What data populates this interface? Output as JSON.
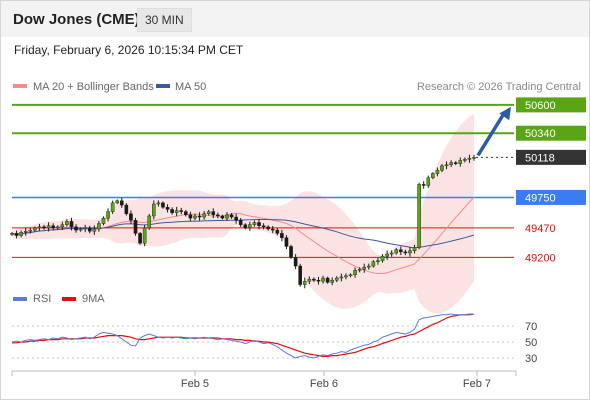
{
  "header": {
    "instrument": "Dow Jones (CME)",
    "timeframe": "30 MIN",
    "timestamp": "Friday, February 6, 2026 10:15:34 PM CET"
  },
  "legend": {
    "ma20_label": "MA 20 + Bollinger Bands",
    "ma50_label": "MA 50",
    "credit": "Research © 2026 Trading Central",
    "ma20_color": "#f28b8b",
    "ma50_color": "#3a5a9a"
  },
  "rsi_legend": {
    "rsi_label": "RSI",
    "ma9_label": "9MA",
    "rsi_color": "#5b7bd5",
    "ma9_color": "#e01010"
  },
  "chart_data": [
    {
      "type": "candlestick",
      "title": "Dow Jones (CME) 30 MIN",
      "x_ticks": [
        "Feb 5",
        "Feb 6",
        "Feb 7"
      ],
      "ylim": [
        48900,
        50700
      ],
      "price_levels": [
        {
          "value": 50600,
          "label": "50600",
          "kind": "resistance",
          "color": "#5aa514"
        },
        {
          "value": 50340,
          "label": "50340",
          "kind": "resistance",
          "color": "#5aa514"
        },
        {
          "value": 50118,
          "label": "50118",
          "kind": "last",
          "color": "#333333"
        },
        {
          "value": 49750,
          "label": "49750",
          "kind": "pivot",
          "color": "#3c7cf2"
        },
        {
          "value": 49470,
          "label": "49470",
          "kind": "support",
          "color": "#e01010"
        },
        {
          "value": 49200,
          "label": "49200",
          "kind": "support",
          "color": "#e01010"
        }
      ],
      "close_series": [
        49420,
        49400,
        49430,
        49440,
        49450,
        49470,
        49480,
        49470,
        49490,
        49470,
        49480,
        49500,
        49530,
        49480,
        49450,
        49460,
        49470,
        49440,
        49460,
        49510,
        49560,
        49620,
        49700,
        49720,
        49680,
        49600,
        49540,
        49420,
        49330,
        49470,
        49580,
        49690,
        49700,
        49660,
        49640,
        49610,
        49630,
        49620,
        49590,
        49560,
        49580,
        49570,
        49600,
        49620,
        49590,
        49580,
        49560,
        49590,
        49570,
        49540,
        49500,
        49470,
        49500,
        49520,
        49490,
        49480,
        49460,
        49450,
        49420,
        49380,
        49300,
        49200,
        49120,
        48950,
        48980,
        49000,
        48990,
        48980,
        49010,
        48970,
        48990,
        49010,
        49020,
        49030,
        49040,
        49080,
        49090,
        49110,
        49120,
        49160,
        49170,
        49210,
        49230,
        49240,
        49270,
        49250,
        49240,
        49260,
        49290,
        49870,
        49860,
        49930,
        49970,
        50000,
        50040,
        50050,
        50070,
        50060,
        50090,
        50100,
        50110,
        50118
      ],
      "annotation": {
        "type": "arrow",
        "from_value": 50118,
        "to_value": 50600,
        "color": "#2a5aa8"
      }
    },
    {
      "type": "line",
      "title": "RSI",
      "ylim": [
        20,
        90
      ],
      "yticks": [
        70,
        50,
        30
      ],
      "series": [
        {
          "name": "RSI",
          "values": [
            50,
            51,
            50,
            52,
            53,
            52,
            53,
            54,
            53,
            55,
            54,
            56,
            55,
            53,
            54,
            55,
            56,
            54,
            56,
            60,
            62,
            61,
            60,
            58,
            54,
            50,
            46,
            45,
            55,
            58,
            60,
            58,
            56,
            55,
            56,
            55,
            56,
            55,
            54,
            55,
            54,
            55,
            56,
            55,
            54,
            53,
            54,
            53,
            52,
            51,
            50,
            48,
            50,
            52,
            50,
            48,
            49,
            47,
            44,
            40,
            36,
            33,
            30,
            32,
            33,
            31,
            30,
            32,
            34,
            33,
            35,
            36,
            38,
            37,
            40,
            42,
            44,
            46,
            47,
            50,
            52,
            56,
            58,
            60,
            62,
            61,
            60,
            62,
            66,
            78,
            80,
            81,
            82,
            83,
            84,
            84,
            85,
            84,
            84,
            84,
            85,
            85
          ]
        },
        {
          "name": "9MA",
          "values": [
            49,
            49,
            50,
            50,
            51,
            51,
            52,
            52,
            53,
            53,
            53,
            54,
            54,
            54,
            54,
            54,
            55,
            55,
            55,
            56,
            57,
            58,
            58,
            58,
            58,
            57,
            56,
            54,
            53,
            53,
            54,
            55,
            56,
            56,
            56,
            56,
            56,
            56,
            55,
            55,
            55,
            55,
            55,
            55,
            55,
            55,
            54,
            54,
            54,
            53,
            53,
            52,
            52,
            51,
            51,
            50,
            50,
            49,
            48,
            46,
            44,
            42,
            40,
            38,
            36,
            35,
            34,
            33,
            32,
            32,
            33,
            33,
            34,
            35,
            36,
            37,
            39,
            41,
            43,
            44,
            46,
            48,
            50,
            52,
            54,
            56,
            57,
            59,
            60,
            63,
            66,
            69,
            72,
            74,
            77,
            80,
            82,
            83,
            84,
            84,
            84,
            85
          ]
        }
      ]
    }
  ]
}
